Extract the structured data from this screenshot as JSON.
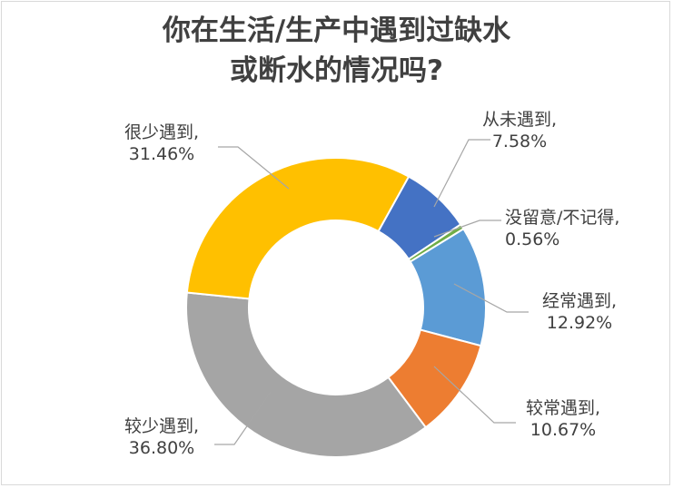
{
  "chart_data": {
    "type": "pie",
    "title_lines": [
      "你在生活/生产中遇到过缺水",
      "或断水的情况吗?"
    ],
    "slices": [
      {
        "name": "从未遇到",
        "value": 7.58,
        "label_line1": "从未遇到,",
        "label_line2": "7.58%",
        "color": "#4472C4"
      },
      {
        "name": "没留意/不记得",
        "value": 0.56,
        "label_line1": "没留意/不记得,",
        "label_line2": "0.56%",
        "color": "#70AD47"
      },
      {
        "name": "经常遇到",
        "value": 12.92,
        "label_line1": "经常遇到,",
        "label_line2": "12.92%",
        "color": "#5B9BD5"
      },
      {
        "name": "较常遇到",
        "value": 10.67,
        "label_line1": "较常遇到,",
        "label_line2": "10.67%",
        "color": "#ED7D31"
      },
      {
        "name": "较少遇到",
        "value": 36.8,
        "label_line1": "较少遇到,",
        "label_line2": "36.80%",
        "color": "#A5A5A5"
      },
      {
        "name": "很少遇到",
        "value": 31.46,
        "label_line1": "很少遇到,",
        "label_line2": "31.46%",
        "color": "#FFC000"
      }
    ],
    "start_angle_deg": 29,
    "direction": "clockwise",
    "donut": true
  }
}
